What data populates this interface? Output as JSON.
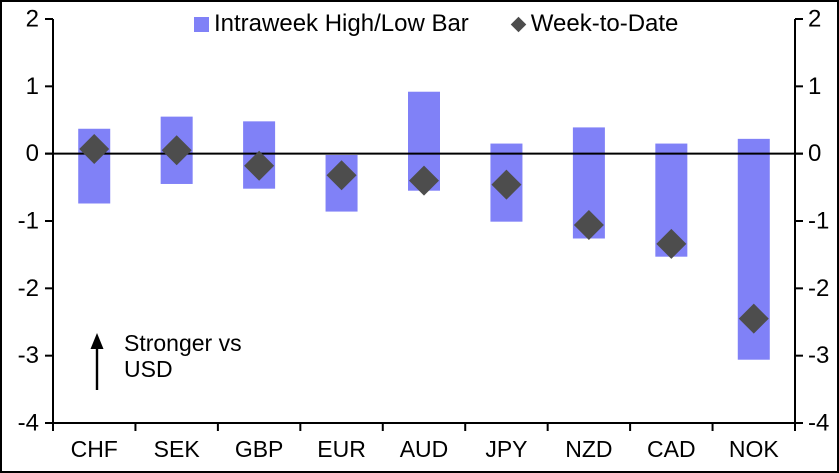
{
  "legend": {
    "items": [
      {
        "label": "Intraweek High/Low Bar",
        "swatch": "square",
        "color": "#8081F7"
      },
      {
        "label": "Week-to-Date",
        "swatch": "diamond",
        "color": "#4D4D4D"
      }
    ]
  },
  "annotation": {
    "text": "Stronger vs USD",
    "icon": "up-arrow-icon"
  },
  "chart_data": {
    "type": "bar",
    "subtype": "floating-range-bar-with-diamond-markers",
    "categories": [
      "CHF",
      "SEK",
      "GBP",
      "EUR",
      "AUD",
      "JPY",
      "NZD",
      "CAD",
      "NOK"
    ],
    "series": [
      {
        "name": "Intraweek High/Low Bar",
        "kind": "range-bar",
        "color": "#8081F7",
        "high": [
          0.37,
          0.55,
          0.48,
          -0.02,
          0.92,
          0.15,
          0.39,
          0.15,
          0.22
        ],
        "low": [
          -0.74,
          -0.45,
          -0.52,
          -0.86,
          -0.55,
          -1.01,
          -1.26,
          -1.53,
          -3.06
        ]
      },
      {
        "name": "Week-to-Date",
        "kind": "diamond-marker",
        "color": "#4D4D4D",
        "values": [
          0.07,
          0.05,
          -0.18,
          -0.32,
          -0.4,
          -0.46,
          -1.06,
          -1.34,
          -2.45
        ]
      }
    ],
    "title": "",
    "xlabel": "",
    "ylabel": "",
    "ylim": [
      -4,
      2
    ],
    "yticks": [
      2,
      1,
      0,
      -1,
      -2,
      -3,
      -4
    ],
    "grid": false,
    "zero_line": true,
    "legend_position": "top",
    "axis_color": "#000000"
  }
}
